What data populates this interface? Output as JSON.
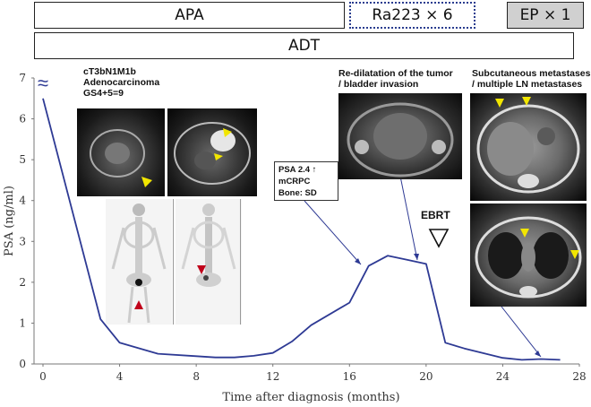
{
  "treatment_bars": {
    "apa": "APA",
    "ra223": "Ra223 × 6",
    "ep": "EP × 1",
    "adt": "ADT"
  },
  "annotations": {
    "diagnosis": "cT3bN1M1b\nAdenocarcinoma\nGS4+5=9",
    "redilatation": "Re-dilatation of the tumor\n/ bladder invasion",
    "metastases": "Subcutaneous metastases\n/ multiple LN metastases",
    "psa_box": [
      "PSA 2.4 ↑",
      "mCRPC",
      "Bone: SD"
    ],
    "ebrt": "EBRT",
    "axis_break": "≈"
  },
  "colors": {
    "line": "#2e3a94",
    "marker_yellow": "#f2e600",
    "marker_red": "#c0001a",
    "ra_border": "#2a3d8f"
  },
  "chart_data": {
    "type": "line",
    "xlabel": "Time after diagnosis (months)",
    "ylabel": "PSA (ng/ml)",
    "xlim": [
      0,
      28
    ],
    "ylim": [
      0,
      7
    ],
    "xticks": [
      0,
      4,
      8,
      12,
      16,
      20,
      24,
      28
    ],
    "yticks": [
      0,
      1,
      2,
      3,
      4,
      5,
      6,
      7
    ],
    "grid": false,
    "series": [
      {
        "x": [
          0,
          3,
          4,
          6,
          8,
          9,
          10,
          11,
          12,
          13,
          14,
          16,
          17,
          18,
          19,
          20,
          21,
          22,
          24,
          25,
          26,
          27
        ],
        "y": [
          6.5,
          1.1,
          0.52,
          0.25,
          0.19,
          0.16,
          0.16,
          0.2,
          0.27,
          0.55,
          0.95,
          1.5,
          2.4,
          2.65,
          2.55,
          2.45,
          0.52,
          0.38,
          0.15,
          0.1,
          0.12,
          0.1
        ]
      }
    ]
  }
}
